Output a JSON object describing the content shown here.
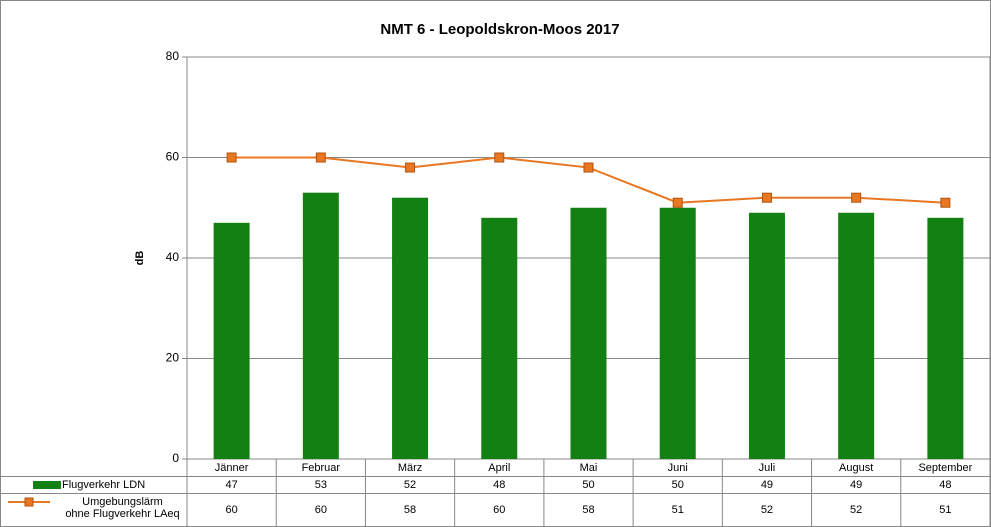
{
  "chart_data": {
    "type": "bar-line-table",
    "title": "NMT 6 - Leopoldskron-Moos 2017",
    "y_label": "dB",
    "categories": [
      "Jänner",
      "Februar",
      "März",
      "April",
      "Mai",
      "Juni",
      "Juli",
      "August",
      "September"
    ],
    "series": [
      {
        "name": "Flugverkehr LDN",
        "type": "bar",
        "color": "#138013",
        "values": [
          47,
          53,
          52,
          48,
          50,
          50,
          49,
          49,
          48
        ]
      },
      {
        "name": "Umgebungslärm\nohne Flugverkehr LAeq",
        "type": "line",
        "color": "#e87722",
        "values": [
          60,
          60,
          58,
          60,
          58,
          51,
          52,
          52,
          51
        ]
      }
    ],
    "ylim": [
      0,
      80
    ],
    "yticks": [
      0,
      20,
      40,
      60,
      80
    ],
    "grid": true
  }
}
